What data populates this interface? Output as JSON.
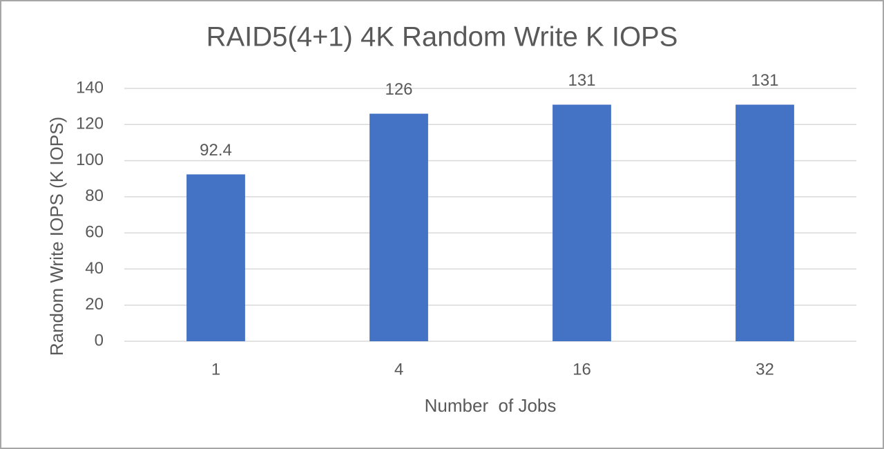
{
  "chart_data": {
    "type": "bar",
    "title": "RAID5(4+1) 4K Random Write K IOPS",
    "x_label": "Number  of Jobs",
    "y_label": "Random Write IOPS (K IOPS)",
    "categories": [
      "1",
      "4",
      "16",
      "32"
    ],
    "values": [
      92.4,
      126,
      131,
      131
    ],
    "color": "#4472c4",
    "ylim": [
      0,
      140
    ],
    "yticks": [
      0,
      20,
      40,
      60,
      80,
      100,
      120,
      140
    ],
    "grid": true,
    "data_labels": true
  }
}
